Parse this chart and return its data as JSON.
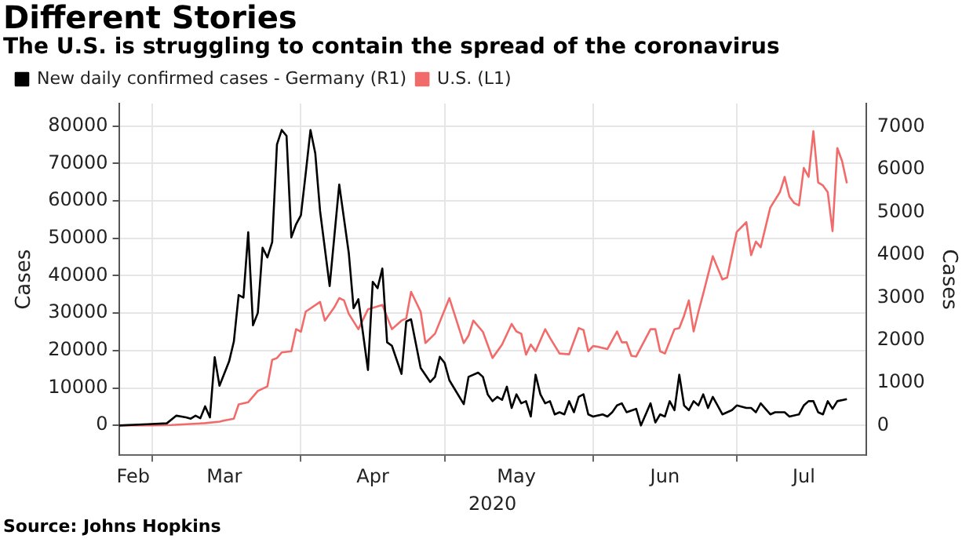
{
  "chart_data": {
    "type": "line",
    "title": "Different Stories",
    "subtitle": "The U.S. is struggling to contain the spread of the coronavirus",
    "xlabel": "2020",
    "ylabel": "Cases",
    "y2label": "Cases",
    "annotations": [
      "Source: Johns Hopkins"
    ],
    "xlim": [
      "2020-02-23",
      "2020-07-28"
    ],
    "xticks": [
      {
        "value": "2020-02-26",
        "label": "Feb"
      },
      {
        "value": "2020-03-01",
        "label": null
      },
      {
        "value": "2020-03-16",
        "label": "Mar"
      },
      {
        "value": "2020-04-01",
        "label": null
      },
      {
        "value": "2020-04-16",
        "label": "Apr"
      },
      {
        "value": "2020-05-01",
        "label": null
      },
      {
        "value": "2020-05-16",
        "label": "May"
      },
      {
        "value": "2020-06-01",
        "label": null
      },
      {
        "value": "2020-06-16",
        "label": "Jun"
      },
      {
        "value": "2020-07-01",
        "label": null
      },
      {
        "value": "2020-07-15",
        "label": "Jul"
      }
    ],
    "ylim": [
      -8000,
      86000
    ],
    "yticks": [
      0,
      10000,
      20000,
      30000,
      40000,
      50000,
      60000,
      70000,
      80000
    ],
    "y2lim": [
      -700,
      7550
    ],
    "y2ticks": [
      0,
      1000,
      2000,
      3000,
      4000,
      5000,
      6000,
      7000
    ],
    "grid": true,
    "legend": "top left",
    "marker": "none",
    "line_style": "solid",
    "series": [
      {
        "name": "New daily confirmed cases - Germany (R1)",
        "color": "#000000",
        "axis": "y2",
        "x": [
          "2020-02-23",
          "2020-02-29",
          "2020-03-04",
          "2020-03-06",
          "2020-03-08",
          "2020-03-09",
          "2020-03-10",
          "2020-03-11",
          "2020-03-12",
          "2020-03-13",
          "2020-03-14",
          "2020-03-15",
          "2020-03-17",
          "2020-03-18",
          "2020-03-19",
          "2020-03-20",
          "2020-03-21",
          "2020-03-22",
          "2020-03-23",
          "2020-03-24",
          "2020-03-25",
          "2020-03-26",
          "2020-03-27",
          "2020-03-28",
          "2020-03-29",
          "2020-03-30",
          "2020-03-31",
          "2020-04-01",
          "2020-04-02",
          "2020-04-03",
          "2020-04-04",
          "2020-04-05",
          "2020-04-07",
          "2020-04-09",
          "2020-04-11",
          "2020-04-12",
          "2020-04-13",
          "2020-04-15",
          "2020-04-16",
          "2020-04-17",
          "2020-04-18",
          "2020-04-19",
          "2020-04-20",
          "2020-04-22",
          "2020-04-23",
          "2020-04-24",
          "2020-04-25",
          "2020-04-26",
          "2020-04-28",
          "2020-04-29",
          "2020-04-30",
          "2020-05-01",
          "2020-05-02",
          "2020-05-05",
          "2020-05-06",
          "2020-05-08",
          "2020-05-09",
          "2020-05-10",
          "2020-05-11",
          "2020-05-12",
          "2020-05-13",
          "2020-05-14",
          "2020-05-15",
          "2020-05-16",
          "2020-05-17",
          "2020-05-18",
          "2020-05-19",
          "2020-05-20",
          "2020-05-21",
          "2020-05-22",
          "2020-05-23",
          "2020-05-24",
          "2020-05-25",
          "2020-05-26",
          "2020-05-27",
          "2020-05-28",
          "2020-05-29",
          "2020-05-30",
          "2020-05-31",
          "2020-06-01",
          "2020-06-03",
          "2020-06-04",
          "2020-06-05",
          "2020-06-06",
          "2020-06-07",
          "2020-06-08",
          "2020-06-10",
          "2020-06-11",
          "2020-06-13",
          "2020-06-14",
          "2020-06-15",
          "2020-06-16",
          "2020-06-17",
          "2020-06-18",
          "2020-06-19",
          "2020-06-20",
          "2020-06-21",
          "2020-06-22",
          "2020-06-23",
          "2020-06-24",
          "2020-06-25",
          "2020-06-26",
          "2020-06-27",
          "2020-06-28",
          "2020-06-30",
          "2020-07-01",
          "2020-07-03",
          "2020-07-04",
          "2020-07-05",
          "2020-07-06",
          "2020-07-08",
          "2020-07-09",
          "2020-07-11",
          "2020-07-12",
          "2020-07-14",
          "2020-07-15",
          "2020-07-16",
          "2020-07-17",
          "2020-07-18",
          "2020-07-19",
          "2020-07-20",
          "2020-07-21",
          "2020-07-22",
          "2020-07-24"
        ],
        "values": [
          0,
          30,
          50,
          230,
          190,
          160,
          230,
          170,
          450,
          190,
          1600,
          930,
          1500,
          1970,
          3060,
          3000,
          4530,
          2350,
          2640,
          4170,
          3940,
          4300,
          6590,
          6930,
          6790,
          4410,
          4720,
          4930,
          5910,
          6930,
          6380,
          5030,
          3270,
          5650,
          4040,
          2750,
          2960,
          1300,
          3370,
          3220,
          3680,
          1950,
          1870,
          1210,
          2440,
          2490,
          1920,
          1350,
          1020,
          1140,
          1610,
          1470,
          1060,
          500,
          1140,
          1240,
          1140,
          730,
          570,
          670,
          600,
          910,
          410,
          730,
          520,
          570,
          210,
          1190,
          730,
          520,
          570,
          260,
          310,
          260,
          570,
          310,
          670,
          730,
          260,
          210,
          260,
          210,
          310,
          470,
          520,
          310,
          390,
          0,
          520,
          70,
          260,
          210,
          570,
          360,
          1190,
          470,
          360,
          570,
          470,
          730,
          410,
          670,
          470,
          260,
          360,
          470,
          410,
          410,
          310,
          520,
          260,
          310,
          310,
          210,
          260,
          470,
          570,
          570,
          310,
          260,
          570,
          390,
          570,
          620
        ]
      },
      {
        "name": "U.S. (L1)",
        "color": "#f26b6b",
        "axis": "y",
        "x": [
          "2020-02-23",
          "2020-03-01",
          "2020-03-05",
          "2020-03-12",
          "2020-03-15",
          "2020-03-16",
          "2020-03-18",
          "2020-03-19",
          "2020-03-21",
          "2020-03-23",
          "2020-03-25",
          "2020-03-26",
          "2020-03-27",
          "2020-03-28",
          "2020-03-30",
          "2020-03-31",
          "2020-04-01",
          "2020-04-02",
          "2020-04-05",
          "2020-04-06",
          "2020-04-08",
          "2020-04-09",
          "2020-04-10",
          "2020-04-11",
          "2020-04-13",
          "2020-04-15",
          "2020-04-18",
          "2020-04-20",
          "2020-04-22",
          "2020-04-23",
          "2020-04-24",
          "2020-04-26",
          "2020-04-27",
          "2020-04-29",
          "2020-05-02",
          "2020-05-05",
          "2020-05-06",
          "2020-05-07",
          "2020-05-09",
          "2020-05-11",
          "2020-05-13",
          "2020-05-15",
          "2020-05-16",
          "2020-05-17",
          "2020-05-18",
          "2020-05-19",
          "2020-05-20",
          "2020-05-22",
          "2020-05-23",
          "2020-05-25",
          "2020-05-27",
          "2020-05-29",
          "2020-05-30",
          "2020-05-31",
          "2020-06-01",
          "2020-06-02",
          "2020-06-04",
          "2020-06-06",
          "2020-06-07",
          "2020-06-08",
          "2020-06-09",
          "2020-06-10",
          "2020-06-13",
          "2020-06-14",
          "2020-06-15",
          "2020-06-16",
          "2020-06-18",
          "2020-06-19",
          "2020-06-20",
          "2020-06-21",
          "2020-06-22",
          "2020-06-23",
          "2020-06-24",
          "2020-06-26",
          "2020-06-28",
          "2020-06-29",
          "2020-07-01",
          "2020-07-03",
          "2020-07-04",
          "2020-07-05",
          "2020-07-06",
          "2020-07-08",
          "2020-07-10",
          "2020-07-11",
          "2020-07-12",
          "2020-07-13",
          "2020-07-14",
          "2020-07-15",
          "2020-07-16",
          "2020-07-17",
          "2020-07-18",
          "2020-07-19",
          "2020-07-20",
          "2020-07-21",
          "2020-07-22",
          "2020-07-23",
          "2020-07-24"
        ],
        "values": [
          0,
          0,
          100,
          600,
          1000,
          1300,
          1800,
          5600,
          6200,
          9200,
          10400,
          17500,
          18000,
          19500,
          19800,
          25700,
          25000,
          30400,
          33000,
          28000,
          31600,
          34000,
          33400,
          29800,
          25700,
          31000,
          32200,
          25700,
          28000,
          28600,
          35700,
          30400,
          22000,
          24500,
          34000,
          22000,
          24000,
          28000,
          25000,
          18000,
          21600,
          27100,
          25100,
          24500,
          18900,
          21600,
          19800,
          25700,
          23400,
          19200,
          19000,
          26000,
          25500,
          19800,
          21200,
          21000,
          20400,
          25100,
          22200,
          22200,
          18600,
          18400,
          25700,
          25700,
          19800,
          19200,
          25700,
          26000,
          29300,
          33400,
          25100,
          30400,
          35200,
          45200,
          39000,
          39500,
          51700,
          54300,
          45500,
          49100,
          47600,
          58200,
          62300,
          66400,
          61100,
          59400,
          58800,
          68800,
          66400,
          78600,
          64900,
          64100,
          62300,
          51900,
          74100,
          70600,
          64700
        ]
      }
    ]
  }
}
